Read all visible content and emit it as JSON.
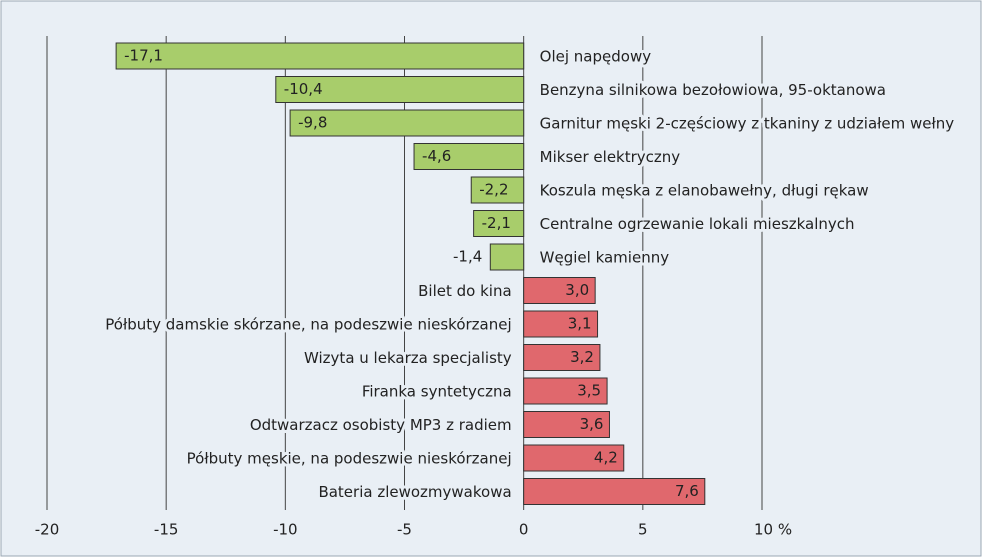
{
  "chart_data": {
    "type": "hbar",
    "categories": [
      "Olej napędowy",
      "Benzyna silnikowa bezołowiowa, 95-oktanowa",
      "Garnitur męski 2-częściowy z tkaniny z udziałem wełny",
      "Mikser elektryczny",
      "Koszula męska z elanobawełny, długi rękaw",
      "Centralne ogrzewanie lokali mieszkalnych",
      "Węgiel kamienny",
      "Bilet do kina",
      "Półbuty damskie skórzane, na podeszwie nieskórzanej",
      "Wizyta u lekarza specjalisty",
      "Firanka syntetyczna",
      "Odtwarzacz osobisty MP3 z radiem",
      "Półbuty męskie, na podeszwie nieskórzanej",
      "Bateria zlewozmywakowa"
    ],
    "values": [
      -17.1,
      -10.4,
      -9.8,
      -4.6,
      -2.2,
      -2.1,
      -1.4,
      3.0,
      3.1,
      3.2,
      3.5,
      3.6,
      4.2,
      7.6
    ],
    "value_labels": [
      "-17,1",
      "-10,4",
      "-9,8",
      "-4,6",
      "-2,2",
      "-2,1",
      "-1,4",
      "3,0",
      "3,1",
      "3,2",
      "3,5",
      "3,6",
      "4,2",
      "7,6"
    ],
    "color_negative": "#a8cd6b",
    "color_positive": "#e0686d",
    "xlim": [
      -20,
      10
    ],
    "xticks": [
      -20,
      -15,
      -10,
      -5,
      0,
      5,
      {
        "value": 10,
        "label": "10 %"
      }
    ],
    "grid": true
  }
}
